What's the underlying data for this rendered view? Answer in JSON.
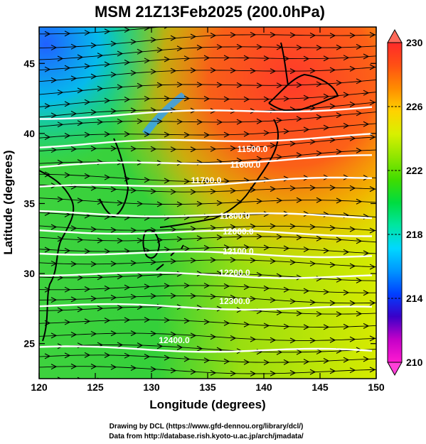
{
  "title": "MSM 21Z13Feb2025 (200.0hPa)",
  "x_axis": {
    "label": "Longitude (degrees)",
    "range": [
      120,
      150
    ],
    "ticks": [
      "120",
      "125",
      "130",
      "135",
      "140",
      "145",
      "150"
    ]
  },
  "y_axis": {
    "label": "Latitude  (degrees)",
    "range": [
      22.5,
      47.6
    ],
    "ticks": [
      "25",
      "30",
      "35",
      "40",
      "45"
    ]
  },
  "colorbar": {
    "range": [
      210,
      230
    ],
    "ticks": [
      "230",
      "226",
      "222",
      "218",
      "214",
      "210"
    ],
    "colors": [
      "#ff1ad0",
      "#c400c8",
      "#3a00c8",
      "#0040ff",
      "#0096ff",
      "#00d8ff",
      "#00e6a0",
      "#00dc40",
      "#40dc00",
      "#90e600",
      "#d8f000",
      "#ffd200",
      "#ff8c00",
      "#ff5014",
      "#ff2a2a"
    ]
  },
  "contours": {
    "labels": [
      "11500.0",
      "11600.0",
      "11700.0",
      "11800.0",
      "12000.0",
      "12100.0",
      "12200.0",
      "12300.0",
      "12400.0"
    ]
  },
  "credits": {
    "line1": "Drawing by DCL (https://www.gfd-dennou.org/library/dcl/)",
    "line2": "Data from http://database.rish.kyoto-u.ac.jp/arch/jmadata/"
  }
}
